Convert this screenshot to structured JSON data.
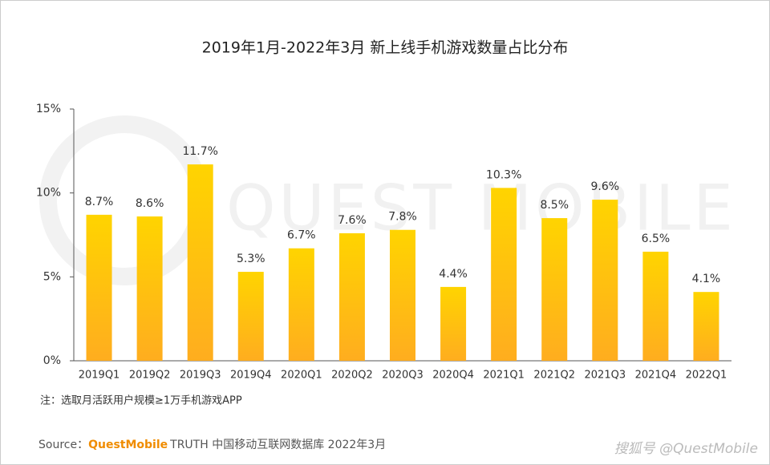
{
  "chart_data": {
    "type": "bar",
    "title": "2019年1月-2022年3月 新上线手机游戏数量占比分布",
    "categories": [
      "2019Q1",
      "2019Q2",
      "2019Q3",
      "2019Q4",
      "2020Q1",
      "2020Q2",
      "2020Q3",
      "2020Q4",
      "2021Q1",
      "2021Q2",
      "2021Q3",
      "2021Q4",
      "2022Q1"
    ],
    "values": [
      8.7,
      8.6,
      11.7,
      5.3,
      6.7,
      7.6,
      7.8,
      4.4,
      10.3,
      8.5,
      9.6,
      6.5,
      4.1
    ],
    "value_labels": [
      "8.7%",
      "8.6%",
      "11.7%",
      "5.3%",
      "6.7%",
      "7.6%",
      "7.8%",
      "4.4%",
      "10.3%",
      "8.5%",
      "9.6%",
      "6.5%",
      "4.1%"
    ],
    "color": [
      "#ffd400",
      "#ffad1f"
    ],
    "ylim": [
      0,
      15
    ],
    "yticks": [
      {
        "value": 0,
        "label": "0%"
      },
      {
        "value": 5,
        "label": "5%"
      },
      {
        "value": 10,
        "label": "10%"
      },
      {
        "value": 15,
        "label": "15%"
      }
    ],
    "grid": false,
    "note": "注：选取月活跃用户规模≥1万手机游戏APP",
    "source": {
      "prefix": "Source：",
      "brand": "QuestMobile",
      "rest": "TRUTH 中国移动互联网数据库 2022年3月"
    },
    "watermark": "QUEST MOBILE",
    "corner_mark": "搜狐号 @QuestMobile"
  }
}
